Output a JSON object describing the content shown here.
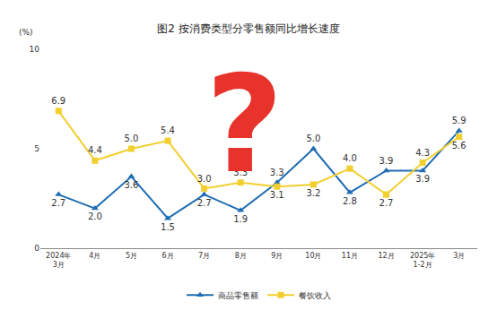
{
  "chart_data": {
    "type": "line",
    "title": "图2 按消费类型分零售额同比增长速度",
    "ylabel": "(%)",
    "annotations": [
      "?"
    ],
    "categories": [
      "2024年\n3月",
      "4月",
      "5月",
      "6月",
      "7月",
      "8月",
      "9月",
      "10月",
      "11月",
      "12月",
      "2025年\n1-2月",
      "3月"
    ],
    "series": [
      {
        "name": "商品零售额",
        "color": "#1f6db3",
        "marker": "triangle-up",
        "values": [
          2.7,
          2.0,
          3.6,
          1.5,
          2.7,
          1.9,
          3.3,
          5.0,
          2.8,
          3.9,
          3.9,
          5.9
        ],
        "value_labels": [
          "2.7",
          "2.0",
          "3.6",
          "1.5",
          "2.7",
          "1.9",
          "3.3",
          "5.0",
          "2.8",
          "3.9",
          "3.9",
          "5.9"
        ]
      },
      {
        "name": "餐饮收入",
        "color": "#f2cf2e",
        "marker": "square",
        "values": [
          6.9,
          4.4,
          5.0,
          5.4,
          3.0,
          3.3,
          3.1,
          3.2,
          4.0,
          2.7,
          4.3,
          5.6
        ],
        "value_labels": [
          "6.9",
          "4.4",
          "5.0",
          "5.4",
          "3.0",
          "3.3",
          "3.1",
          "3.2",
          "4.0",
          "2.7",
          "4.3",
          "5.6"
        ]
      }
    ],
    "ylim": [
      0,
      10
    ],
    "yticks": [
      0,
      5,
      10
    ],
    "grid": false,
    "legend": "bottom",
    "data_labels": true
  }
}
